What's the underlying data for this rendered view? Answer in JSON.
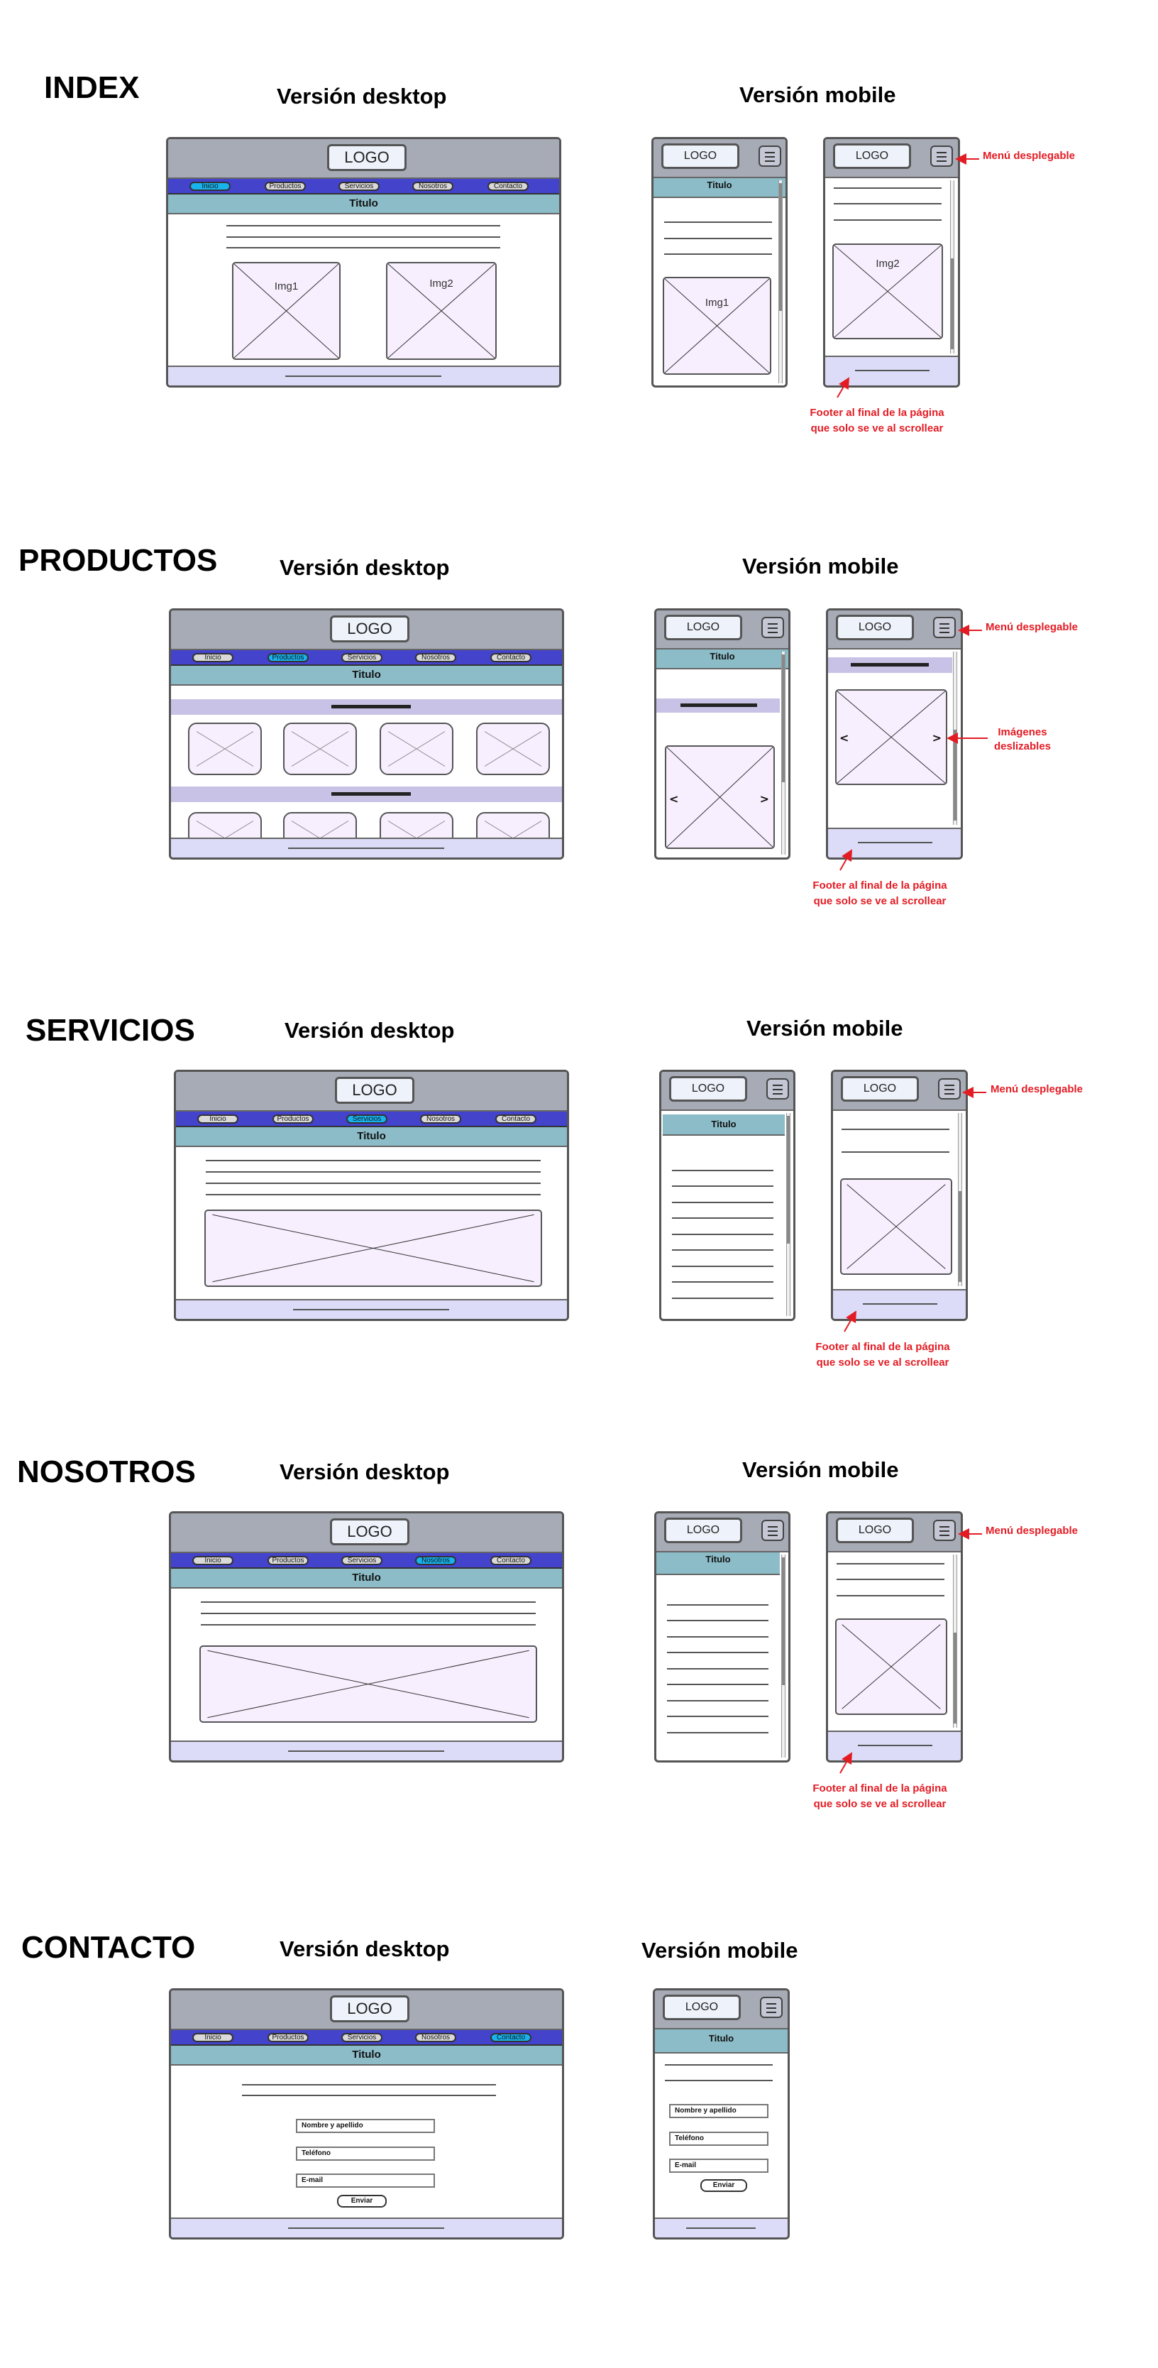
{
  "sections": {
    "index": "INDEX",
    "productos": "PRODUCTOS",
    "servicios": "SERVICIOS",
    "nosotros": "NOSOTROS",
    "contacto": "CONTACTO"
  },
  "labels": {
    "desktop": "Versión desktop",
    "mobile": "Versión mobile",
    "logo": "LOGO",
    "titulo": "Titulo",
    "img1": "Img1",
    "img2": "Img2"
  },
  "nav": [
    "Inicio",
    "Productos",
    "Servicios",
    "Nosotros",
    "Contacto"
  ],
  "active_nav": {
    "index": 0,
    "productos": 1,
    "servicios": 2,
    "nosotros": 3,
    "contacto": 4
  },
  "annotations": {
    "menu": "Menú desplegable",
    "images_line1": "Imágenes",
    "images_line2": "deslizables",
    "footer_line1": "Footer al final de la página",
    "footer_line2": "que solo se ve al scrollear"
  },
  "form": {
    "name": "Nombre y apellido",
    "phone": "Teléfono",
    "email": "E-mail",
    "send": "Enviar"
  },
  "colors": {
    "header": "#a7abb6",
    "nav": "#4343cc",
    "nav_active": "#18b3ec",
    "title_bar": "#8bbcc8",
    "footer": "#dcdcf8",
    "image": "#f7effd",
    "annotation": "#e31c24"
  },
  "icons": {
    "menu": "hamburger-icon",
    "image_placeholder": "image-placeholder-icon",
    "slide_prev": "chevron-left-icon",
    "slide_next": "chevron-right-icon"
  }
}
